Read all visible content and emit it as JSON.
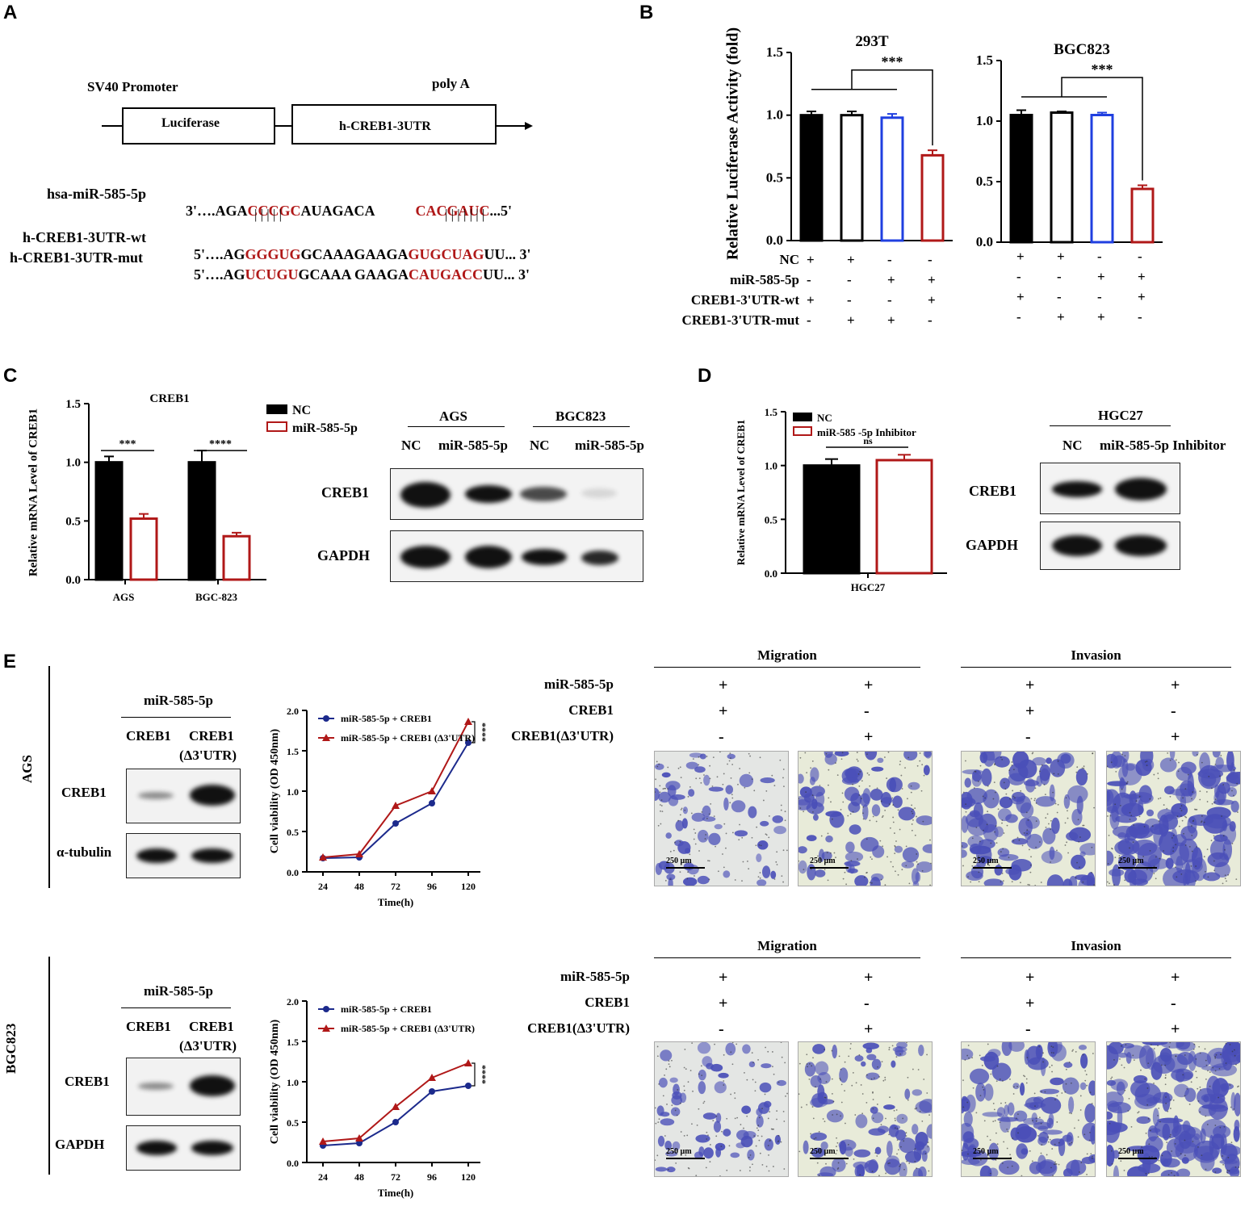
{
  "panel_labels": {
    "A": "A",
    "B": "B",
    "C": "C",
    "D": "D",
    "E": "E"
  },
  "panelA": {
    "promoter": "SV40 Promoter",
    "polyA": "poly A",
    "box1": "Luciferase",
    "box2": "h-CREB1-3UTR",
    "row_labels": [
      "hsa-miR-585-5p",
      "h-CREB1-3UTR-wt",
      "h-CREB1-3UTR-mut"
    ],
    "seq_mir": {
      "a": "3'….AGA",
      "b": "CCCGC",
      "c": "AUAGACA",
      "d": "CACGAUC",
      "e": "...5'"
    },
    "bars1": "| | | | |",
    "bars2": "| | | | | | |",
    "seq_wt": {
      "a": "5'….AG",
      "b": "GGGUG",
      "c": "GCAAAGAAGA",
      "d": "GUGCUAG",
      "e": "UU... 3'"
    },
    "seq_mut": {
      "a": "5'….AG",
      "b": "UCUGU",
      "c": "GCAAA GAAGA",
      "d": "CAUGACC",
      "e": "UU... 3'"
    }
  },
  "panelB": {
    "ylabel": "Relative Luciferase Activity (fold)",
    "conditions": [
      "NC",
      "miR-585-5p",
      "CREB1-3'UTR-wt",
      "CREB1-3'UTR-mut"
    ],
    "signs_293T": [
      [
        "+",
        "+",
        "-",
        "-"
      ],
      [
        "-",
        "-",
        "+",
        "+"
      ],
      [
        "+",
        "-",
        "-",
        "+"
      ],
      [
        "-",
        "+",
        "+",
        "-"
      ]
    ],
    "signs_BGC823": [
      [
        "+",
        "+",
        "-",
        "-"
      ],
      [
        "-",
        "-",
        "+",
        "+"
      ],
      [
        "+",
        "-",
        "-",
        "+"
      ],
      [
        "-",
        "+",
        "+",
        "-"
      ]
    ],
    "sig": "***"
  },
  "panelC": {
    "ylabel": "Relative mRNA Level of CREB1",
    "legend": [
      "NC",
      "miR-585-5p"
    ],
    "sig": [
      "***",
      "****"
    ],
    "blot": {
      "groups": [
        "AGS",
        "BGC823"
      ],
      "lanes": [
        "NC",
        "miR-585-5p",
        "NC",
        "miR-585-5p"
      ],
      "rows": [
        "CREB1",
        "GAPDH"
      ]
    }
  },
  "panelD": {
    "ylabel": "Relative mRNA Level of CREB1",
    "legend": [
      "NC",
      "miR-585 -5p Inhibitor"
    ],
    "sig": "ns",
    "blot": {
      "group": "HGC27",
      "lanes": [
        "NC",
        "miR-585-5p Inhibitor"
      ],
      "rows": [
        "CREB1",
        "GAPDH"
      ]
    }
  },
  "panelE": {
    "rows": [
      {
        "cell": "AGS",
        "blot_header": "miR-585-5p",
        "blot_lanes": [
          "CREB1",
          "CREB1"
        ],
        "blot_lanes_sub": [
          "",
          "(Δ3'UTR)"
        ],
        "blot_rows": [
          "CREB1",
          "α-tubulin"
        ],
        "sig": "****",
        "assays": [
          "Migration",
          "Invasion"
        ],
        "cond_labels": [
          "miR-585-5p",
          "CREB1",
          "CREB1(Δ3'UTR)"
        ],
        "signs": [
          [
            "+",
            "+",
            "-"
          ],
          [
            "+",
            "-",
            "+"
          ]
        ],
        "scalebar": "250 µm"
      },
      {
        "cell": "BGC823",
        "blot_header": "miR-585-5p",
        "blot_lanes": [
          "CREB1",
          "CREB1"
        ],
        "blot_lanes_sub": [
          "",
          "(Δ3'UTR)"
        ],
        "blot_rows": [
          "CREB1",
          "GAPDH"
        ],
        "sig": "****",
        "assays": [
          "Migration",
          "Invasion"
        ],
        "cond_labels": [
          "miR-585-5p",
          "CREB1",
          "CREB1(Δ3'UTR)"
        ],
        "signs": [
          [
            "+",
            "+",
            "-"
          ],
          [
            "+",
            "-",
            "+"
          ]
        ],
        "scalebar": "250 µm"
      }
    ]
  },
  "colors": {
    "nc": "#000000",
    "mir": "#b01818",
    "blue": "#1f3fe0",
    "line_blue": "#1c2a8c",
    "line_red": "#b01818",
    "stain": "#4a4fb8"
  },
  "chart_data": [
    {
      "type": "bar",
      "title": "293T",
      "categories": [
        "1",
        "2",
        "3",
        "4"
      ],
      "values": [
        1.0,
        1.0,
        0.98,
        0.68
      ],
      "errors": [
        0.03,
        0.03,
        0.03,
        0.04
      ],
      "ylabel": "Relative Luciferase Activity (fold)",
      "ylim": [
        0,
        1.5
      ],
      "yticks": [
        "0.0",
        "0.5",
        "1.0",
        "1.5"
      ],
      "significance": "***"
    },
    {
      "type": "bar",
      "title": "BGC823",
      "categories": [
        "1",
        "2",
        "3",
        "4"
      ],
      "values": [
        1.05,
        1.07,
        1.05,
        0.44
      ],
      "errors": [
        0.04,
        0.01,
        0.02,
        0.03
      ],
      "ylim": [
        0,
        1.5
      ],
      "yticks": [
        "0.0",
        "0.5",
        "1.0",
        "1.5"
      ],
      "significance": "***"
    },
    {
      "type": "bar",
      "title": "CREB1",
      "categories": [
        "AGS",
        "BGC-823"
      ],
      "series": [
        {
          "name": "NC",
          "values": [
            1.0,
            1.0
          ],
          "errors": [
            0.05,
            0.1
          ]
        },
        {
          "name": "miR-585-5p",
          "values": [
            0.52,
            0.37
          ],
          "errors": [
            0.04,
            0.03
          ]
        }
      ],
      "ylabel": "Relative mRNA Level of CREB1",
      "ylim": [
        0,
        1.5
      ],
      "yticks": [
        "0.0",
        "0.5",
        "1.0",
        "1.5"
      ]
    },
    {
      "type": "bar",
      "categories": [
        "HGC27"
      ],
      "series": [
        {
          "name": "NC",
          "values": [
            1.0
          ],
          "errors": [
            0.06
          ]
        },
        {
          "name": "miR-585 -5p Inhibitor",
          "values": [
            1.05
          ],
          "errors": [
            0.05
          ]
        }
      ],
      "ylabel": "Relative mRNA Level of CREB1",
      "ylim": [
        0,
        1.5
      ],
      "yticks": [
        "0.0",
        "0.5",
        "1.0",
        "1.5"
      ],
      "significance": "ns"
    },
    {
      "type": "line",
      "x": [
        24,
        48,
        72,
        96,
        120
      ],
      "xlabel": "Time(h)",
      "ylabel": "Cell viability (OD 450nm)",
      "ylim": [
        0.0,
        2.0
      ],
      "yticks": [
        "0.0",
        "0.5",
        "1.0",
        "1.5",
        "2.0"
      ],
      "series": [
        {
          "name": "miR-585-5p + CREB1",
          "values": [
            0.17,
            0.18,
            0.6,
            0.85,
            1.6
          ]
        },
        {
          "name": "miR-585-5p + CREB1 (Δ3'UTR)",
          "values": [
            0.18,
            0.22,
            0.82,
            1.0,
            1.86
          ]
        }
      ],
      "significance": "****"
    },
    {
      "type": "line",
      "x": [
        24,
        48,
        72,
        96,
        120
      ],
      "xlabel": "Time(h)",
      "ylabel": "Cell viability (OD 450nm)",
      "ylim": [
        0.0,
        2.0
      ],
      "yticks": [
        "0.0",
        "0.5",
        "1.0",
        "1.5",
        "2.0"
      ],
      "series": [
        {
          "name": "miR-585-5p + CREB1",
          "values": [
            0.21,
            0.24,
            0.5,
            0.88,
            0.95
          ]
        },
        {
          "name": "miR-585-5p + CREB1 (Δ3'UTR)",
          "values": [
            0.26,
            0.3,
            0.69,
            1.05,
            1.23
          ]
        }
      ],
      "significance": "****"
    }
  ]
}
